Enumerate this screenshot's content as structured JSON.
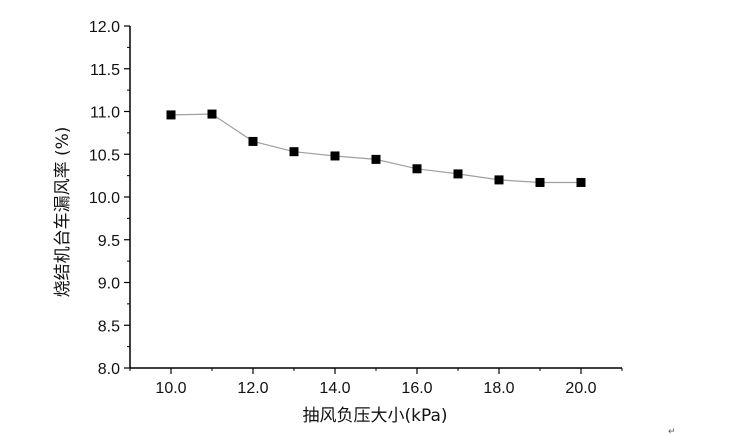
{
  "chart_data": {
    "type": "line",
    "title": "",
    "xlabel": "抽风负压大小(kPa)",
    "ylabel": "烧结机台车漏风率 (%)",
    "x": [
      10,
      11,
      12,
      13,
      14,
      15,
      16,
      17,
      18,
      19,
      20
    ],
    "series": [
      {
        "values": [
          10.96,
          10.97,
          10.65,
          10.53,
          10.48,
          10.44,
          10.33,
          10.27,
          10.2,
          10.17,
          10.17
        ],
        "marker": "square",
        "line_color": "#a0a0a0",
        "marker_color": "#000000"
      }
    ],
    "xlim": [
      9.0,
      21.0
    ],
    "ylim": [
      8.0,
      12.0
    ],
    "xticks": [
      10,
      12,
      14,
      16,
      18,
      20
    ],
    "xtick_labels": [
      "10.0",
      "12.0",
      "14.0",
      "16.0",
      "18.0",
      "20.0"
    ],
    "yticks": [
      8.0,
      8.5,
      9.0,
      9.5,
      10.0,
      10.5,
      11.0,
      11.5,
      12.0
    ],
    "ytick_labels": [
      "8.0",
      "8.5",
      "9.0",
      "9.5",
      "10.0",
      "10.5",
      "11.0",
      "11.5",
      "12.0"
    ],
    "grid": false,
    "legend": "none"
  },
  "stray_mark": "↵"
}
